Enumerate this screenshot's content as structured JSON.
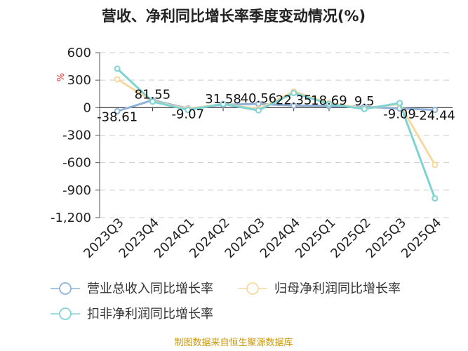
{
  "chart_data": {
    "type": "line",
    "title": "营收、净利同比增长率季度变动情况(%)",
    "unit_label": "%",
    "categories": [
      "2023Q3",
      "2023Q4",
      "2024Q1",
      "2024Q2",
      "2024Q3",
      "2024Q4",
      "2025Q1",
      "2025Q2",
      "2025Q3",
      "2025Q4"
    ],
    "ylim": [
      -1200,
      600
    ],
    "yticks": [
      600,
      300,
      0,
      -300,
      -600,
      -900,
      -1200
    ],
    "ytick_labels": [
      "600",
      "300",
      "0",
      "-300",
      "-600",
      "-900",
      "-1,200"
    ],
    "grid": true,
    "series": [
      {
        "name": "营业总收入同比增长率",
        "color": "#8fb2d9",
        "values": [
          -38.61,
          81.55,
          -9.07,
          31.58,
          40.56,
          22.35,
          18.69,
          9.5,
          -9.09,
          -24.44
        ],
        "labels": [
          "-38.61",
          "81.55",
          "-9.07",
          "31.58",
          "40.56",
          "22.35",
          "18.69",
          "9.5",
          "-9.09",
          "-24.44"
        ]
      },
      {
        "name": "归母净利润同比增长率",
        "color": "#f7d9a0",
        "values": [
          310,
          70,
          -15,
          40,
          -15,
          175,
          50,
          -10,
          40,
          -625
        ]
      },
      {
        "name": "扣非净利润同比增长率",
        "color": "#7fd3d3",
        "values": [
          425,
          65,
          -25,
          40,
          -30,
          160,
          40,
          -15,
          50,
          -990
        ]
      }
    ],
    "legend_position": "bottom"
  },
  "source_text": "制图数据来自恒生聚源数据库"
}
